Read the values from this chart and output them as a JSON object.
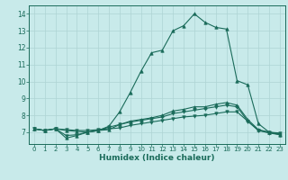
{
  "title": "",
  "xlabel": "Humidex (Indice chaleur)",
  "ylabel": "",
  "bg_color": "#c8eaea",
  "grid_color": "#aed4d4",
  "line_color": "#1a6b5a",
  "xlim": [
    -0.5,
    23.5
  ],
  "ylim": [
    6.3,
    14.5
  ],
  "xticks": [
    0,
    1,
    2,
    3,
    4,
    5,
    6,
    7,
    8,
    9,
    10,
    11,
    12,
    13,
    14,
    15,
    16,
    17,
    18,
    19,
    20,
    21,
    22,
    23
  ],
  "yticks": [
    7,
    8,
    9,
    10,
    11,
    12,
    13,
    14
  ],
  "line1": {
    "x": [
      0,
      1,
      2,
      3,
      4,
      5,
      6,
      7,
      8,
      9,
      10,
      11,
      12,
      13,
      14,
      15,
      16,
      17,
      18,
      19,
      20,
      21,
      22,
      23
    ],
    "y": [
      7.2,
      7.1,
      7.2,
      6.65,
      6.8,
      7.0,
      7.1,
      7.35,
      8.2,
      9.35,
      10.6,
      11.7,
      11.85,
      13.0,
      13.3,
      14.0,
      13.5,
      13.2,
      13.1,
      10.05,
      9.8,
      7.5,
      7.0,
      6.9
    ],
    "marker": "^"
  },
  "line2": {
    "x": [
      0,
      1,
      2,
      3,
      4,
      5,
      6,
      7,
      8,
      9,
      10,
      11,
      12,
      13,
      14,
      15,
      16,
      17,
      18,
      19,
      20,
      21,
      22,
      23
    ],
    "y": [
      7.2,
      7.1,
      7.2,
      7.1,
      7.05,
      7.0,
      7.1,
      7.15,
      7.45,
      7.65,
      7.75,
      7.85,
      8.0,
      8.25,
      8.35,
      8.5,
      8.5,
      8.65,
      8.75,
      8.6,
      7.75,
      7.15,
      7.0,
      6.85
    ],
    "marker": "^"
  },
  "line3": {
    "x": [
      0,
      1,
      2,
      3,
      4,
      5,
      6,
      7,
      8,
      9,
      10,
      11,
      12,
      13,
      14,
      15,
      16,
      17,
      18,
      19,
      20,
      21,
      22,
      23
    ],
    "y": [
      7.2,
      7.1,
      7.2,
      6.8,
      6.85,
      7.0,
      7.1,
      7.3,
      7.45,
      7.6,
      7.7,
      7.8,
      7.9,
      8.1,
      8.2,
      8.3,
      8.4,
      8.5,
      8.6,
      8.5,
      7.65,
      7.1,
      6.95,
      6.85
    ],
    "marker": "v"
  },
  "line4": {
    "x": [
      0,
      1,
      2,
      3,
      4,
      5,
      6,
      7,
      8,
      9,
      10,
      11,
      12,
      13,
      14,
      15,
      16,
      17,
      18,
      19,
      20,
      21,
      22,
      23
    ],
    "y": [
      7.2,
      7.1,
      7.2,
      7.15,
      7.1,
      7.1,
      7.15,
      7.2,
      7.25,
      7.4,
      7.5,
      7.6,
      7.7,
      7.8,
      7.9,
      7.95,
      8.0,
      8.1,
      8.2,
      8.2,
      7.65,
      7.1,
      7.0,
      6.95
    ],
    "marker": "v"
  }
}
